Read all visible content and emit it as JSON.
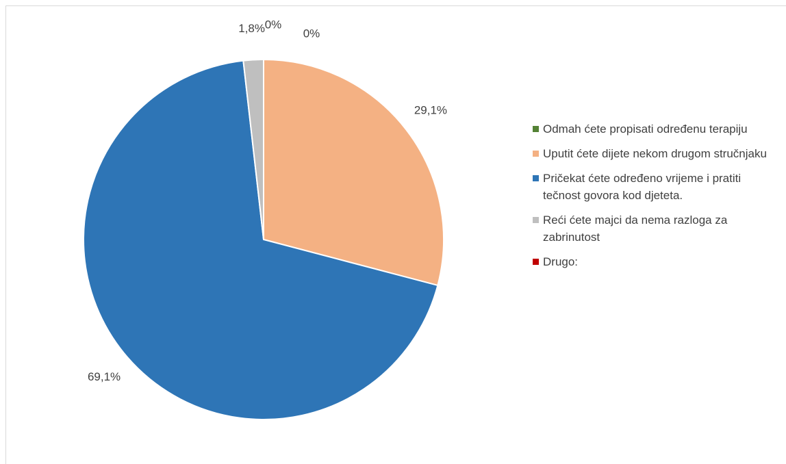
{
  "chart_data": {
    "type": "pie",
    "categories": [
      "Odmah ćete propisati određenu terapiju",
      "Uputit ćete dijete nekom drugom stručnjaku",
      "Pričekat ćete određeno vrijeme i pratiti tečnost govora kod djeteta.",
      "Reći ćete majci da nema razloga za zabrinutost",
      "Drugo:"
    ],
    "values": [
      0,
      29.1,
      69.1,
      1.8,
      0
    ],
    "value_labels": [
      "0%",
      "29,1%",
      "69,1%",
      "1,8%",
      "0%"
    ],
    "colors": [
      "#548235",
      "#f4b183",
      "#2e75b6",
      "#bfbfbf",
      "#c00000"
    ],
    "legend": "right"
  }
}
